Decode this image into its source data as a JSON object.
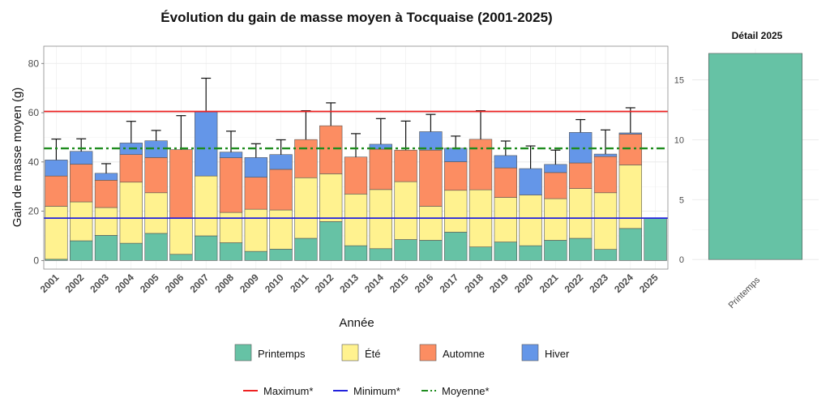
{
  "chart_data": [
    {
      "type": "bar",
      "stacked": true,
      "title": "Évolution du gain de masse moyen à Tocquaise (2001-2025)",
      "xlabel": "Année",
      "ylabel": "Gain de masse moyen (g)",
      "ylim": [
        -3.5,
        87
      ],
      "yticks": [
        0,
        20,
        40,
        60,
        80
      ],
      "grid": true,
      "categories": [
        "2001",
        "2002",
        "2003",
        "2004",
        "2005",
        "2006",
        "2007",
        "2008",
        "2009",
        "2010",
        "2011",
        "2012",
        "2013",
        "2014",
        "2015",
        "2016",
        "2017",
        "2018",
        "2019",
        "2020",
        "2021",
        "2022",
        "2023",
        "2024",
        "2025"
      ],
      "series": [
        {
          "name": "Printemps",
          "color": "#66c2a5",
          "values": [
            0.5,
            8,
            10.2,
            7,
            11,
            2.5,
            10,
            7.2,
            3.7,
            4.6,
            9,
            15.8,
            6,
            4.8,
            8.5,
            8.2,
            11.5,
            5.5,
            7.5,
            6,
            8.2,
            9,
            4.5,
            13,
            17.2
          ]
        },
        {
          "name": "Été",
          "color": "#fff28f",
          "values": [
            21.5,
            15.8,
            11.3,
            24.8,
            16.5,
            14.5,
            24.3,
            12.3,
            17.1,
            15.9,
            24.6,
            19.4,
            21,
            24,
            23.5,
            13.8,
            17,
            23.2,
            18.1,
            20.6,
            16.9,
            20.2,
            23,
            25.8,
            0
          ]
        },
        {
          "name": "Automne",
          "color": "#fc8d62",
          "values": [
            12.3,
            15.3,
            11.1,
            11.2,
            14.3,
            28,
            0,
            22.2,
            13,
            16.5,
            15.5,
            19.5,
            15,
            16.4,
            12.8,
            22.8,
            11.6,
            20.5,
            12,
            0,
            10.6,
            10.4,
            14.7,
            12.5,
            0
          ]
        },
        {
          "name": "Hiver",
          "color": "#6496e8",
          "values": [
            6.5,
            5.2,
            2.8,
            4.7,
            6.8,
            0,
            26,
            2.3,
            8,
            6,
            0,
            0,
            0,
            2,
            0,
            7.5,
            5.5,
            0,
            5,
            10.7,
            3.3,
            12.4,
            1,
            0.5,
            0
          ]
        }
      ],
      "error_bar_tops": [
        49.3,
        49.4,
        39.3,
        56.5,
        52.8,
        58.8,
        74,
        52.5,
        47.4,
        49,
        60.8,
        64,
        51.5,
        57.6,
        56.6,
        59.3,
        50.5,
        60.8,
        48.5,
        46.5,
        44.8,
        57.2,
        53,
        62,
        null
      ],
      "reference_lines": [
        {
          "name": "Maximum*",
          "value": 60.5,
          "color": "#ee2222",
          "style": "solid"
        },
        {
          "name": "Minimum*",
          "value": 17.2,
          "color": "#2222dd",
          "style": "solid"
        },
        {
          "name": "Moyenne*",
          "value": 45.5,
          "color": "#1e8c1e",
          "style": "dotdash"
        }
      ]
    },
    {
      "type": "bar",
      "title": "Détail 2025",
      "categories": [
        "Printemps"
      ],
      "values": [
        17.2
      ],
      "color": "#66c2a5",
      "ylim": [
        -0.8,
        17.6
      ],
      "yticks": [
        0,
        5,
        10,
        15
      ],
      "grid": true
    }
  ],
  "legend": {
    "fill_items": [
      {
        "label": "Printemps",
        "color": "#66c2a5"
      },
      {
        "label": "Été",
        "color": "#fff28f"
      },
      {
        "label": "Automne",
        "color": "#fc8d62"
      },
      {
        "label": "Hiver",
        "color": "#6496e8"
      }
    ],
    "line_items": [
      {
        "label": "Maximum*",
        "color": "#ee2222",
        "dash": ""
      },
      {
        "label": "Minimum*",
        "color": "#2222dd",
        "dash": ""
      },
      {
        "label": "Moyenne*",
        "color": "#1e8c1e",
        "dash": "8,3,2,3"
      }
    ]
  }
}
